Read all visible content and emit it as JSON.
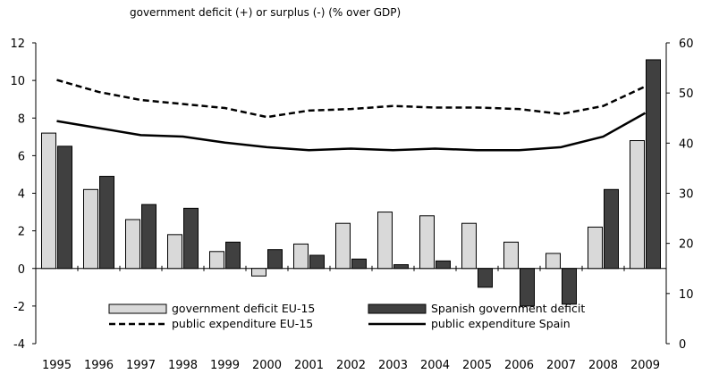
{
  "chart_data": {
    "type": "bar",
    "title": "government deficit (+) or surplus (-) (% over GDP)",
    "categories": [
      "1995",
      "1996",
      "1997",
      "1998",
      "1999",
      "2000",
      "2001",
      "2002",
      "2003",
      "2004",
      "2005",
      "2006",
      "2007",
      "2008",
      "2009"
    ],
    "y_left": {
      "range": [
        -4,
        12
      ],
      "ticks": [
        "-4",
        "-2",
        "0",
        "2",
        "4",
        "6",
        "8",
        "10",
        "12"
      ]
    },
    "y_right": {
      "range": [
        0,
        60
      ],
      "ticks": [
        "0",
        "10",
        "20",
        "30",
        "40",
        "50",
        "60"
      ]
    },
    "grid": false,
    "legend_position": "bottom",
    "series": [
      {
        "name": "government deficit EU-15",
        "type": "bar",
        "axis": "left",
        "color": "#d9d9d9",
        "values": [
          7.2,
          4.2,
          2.6,
          1.8,
          0.9,
          -0.4,
          1.3,
          2.4,
          3.0,
          2.8,
          2.4,
          1.4,
          0.8,
          2.2,
          6.8
        ]
      },
      {
        "name": "Spanish government deficit",
        "type": "bar",
        "axis": "left",
        "color": "#404040",
        "values": [
          6.5,
          4.9,
          3.4,
          3.2,
          1.4,
          1.0,
          0.7,
          0.5,
          0.2,
          0.4,
          -1.0,
          -2.0,
          -1.9,
          4.2,
          11.1
        ]
      },
      {
        "name": "public expenditure EU-15",
        "type": "line",
        "axis": "right",
        "color": "#000000",
        "dash": "dashed",
        "values": [
          52.6,
          50.2,
          48.6,
          47.8,
          47.0,
          45.2,
          46.5,
          46.8,
          47.4,
          47.1,
          47.1,
          46.8,
          45.8,
          47.4,
          51.3
        ]
      },
      {
        "name": "public expenditure Spain",
        "type": "line",
        "axis": "right",
        "color": "#000000",
        "dash": "solid",
        "values": [
          44.4,
          43.0,
          41.6,
          41.3,
          40.1,
          39.2,
          38.6,
          38.9,
          38.6,
          38.9,
          38.6,
          38.6,
          39.2,
          41.3,
          46.0
        ]
      }
    ]
  }
}
